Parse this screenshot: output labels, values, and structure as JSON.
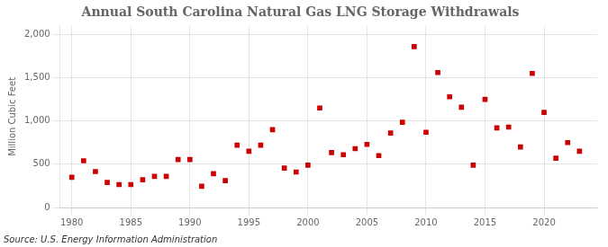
{
  "chart_data": {
    "type": "scatter",
    "title": "Annual South Carolina Natural Gas LNG Storage Withdrawals",
    "ylabel": "Million Cubic Feet",
    "annotation": "Source: U.S. Energy Information Administration",
    "x": [
      1980,
      1981,
      1982,
      1983,
      1984,
      1985,
      1986,
      1987,
      1988,
      1989,
      1990,
      1991,
      1992,
      1993,
      1994,
      1995,
      1996,
      1997,
      1998,
      1999,
      2000,
      2001,
      2002,
      2003,
      2004,
      2005,
      2006,
      2007,
      2008,
      2009,
      2010,
      2011,
      2012,
      2013,
      2014,
      2015,
      2016,
      2017,
      2018,
      2019,
      2020,
      2021,
      2022,
      2023
    ],
    "values": [
      350,
      540,
      415,
      290,
      265,
      265,
      320,
      360,
      360,
      555,
      555,
      245,
      390,
      310,
      720,
      650,
      720,
      900,
      455,
      410,
      490,
      1150,
      635,
      610,
      680,
      730,
      600,
      860,
      985,
      1860,
      870,
      1560,
      1280,
      1160,
      490,
      1250,
      920,
      930,
      700,
      1550,
      1100,
      570,
      750,
      650
    ],
    "color": "#cc0000",
    "marker": "square",
    "xlim": [
      1979,
      2024.5
    ],
    "xticks": [
      1980,
      1985,
      1990,
      1995,
      2000,
      2005,
      2010,
      2015,
      2020
    ],
    "ylim": [
      0,
      2100
    ],
    "yticks": [
      0,
      500,
      {
        "value": 1000,
        "label": "1,000"
      },
      {
        "value": 1500,
        "label": "1,500"
      },
      {
        "value": 2000,
        "label": "2,000"
      }
    ],
    "grid": true
  }
}
